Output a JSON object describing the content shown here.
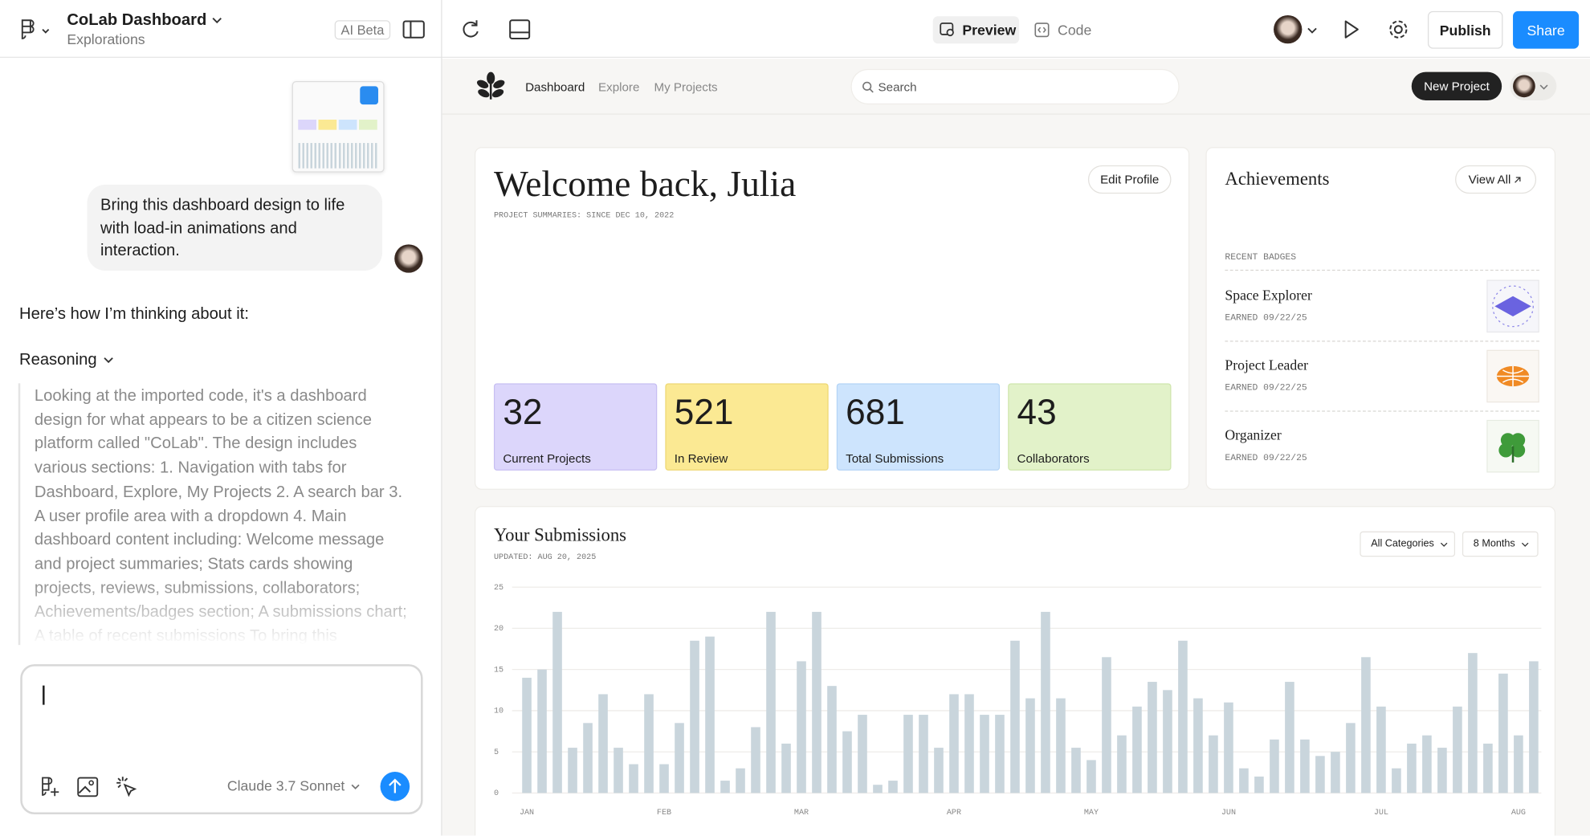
{
  "top_bar": {
    "project_title": "CoLab Dashboard",
    "project_subtitle": "Explorations",
    "ai_badge": "AI Beta",
    "preview_tab": "Preview",
    "code_tab": "Code",
    "publish": "Publish",
    "share": "Share"
  },
  "chat": {
    "user_message": "Bring this dashboard design to life with load-in animations and interaction.",
    "assistant_intro": "Here’s how I’m thinking about it:",
    "reasoning_label": "Reasoning",
    "reasoning_text": "Looking at the imported code, it's a dashboard design for what appears to be a citizen science platform called \"CoLab\". The design includes various sections: 1. Navigation with tabs for Dashboard, Explore, My Projects 2. A search bar 3. A user profile area with a dropdown 4. Main dashboard content including: Welcome message and project summaries; Stats cards showing projects, reviews, submissions, collaborators; Achievements/badges section; A submissions chart; A table of recent submissions To bring this",
    "model": "Claude 3.7 Sonnet"
  },
  "preview": {
    "nav": [
      "Dashboard",
      "Explore",
      "My Projects"
    ],
    "search_placeholder": "Search",
    "new_project": "New Project",
    "welcome": {
      "title": "Welcome back, Julia",
      "subtitle": "PROJECT SUMMARIES: SINCE DEC 10, 2022",
      "edit_profile": "Edit Profile",
      "stats": [
        {
          "value": 32,
          "label": "Current Projects"
        },
        {
          "value": 521,
          "label": "In Review"
        },
        {
          "value": 681,
          "label": "Total Submissions"
        },
        {
          "value": 43,
          "label": "Collaborators"
        }
      ]
    },
    "achievements": {
      "title": "Achievements",
      "view_all": "View All",
      "section": "RECENT BADGES",
      "badges": [
        {
          "name": "Space Explorer",
          "earned": "EARNED 09/22/25"
        },
        {
          "name": "Project Leader",
          "earned": "EARNED 09/22/25"
        },
        {
          "name": "Organizer",
          "earned": "EARNED 09/22/25"
        }
      ]
    },
    "filters": [
      "All Categories",
      "8 Months"
    ]
  },
  "chart_data": {
    "type": "bar",
    "title": "Your Submissions",
    "subtitle": "UPDATED: AUG 20, 2025",
    "color": "#c9d5dc",
    "grid": true,
    "ylim": [
      0,
      25
    ],
    "yticks": [
      0,
      5,
      10,
      15,
      20,
      25
    ],
    "categories": [
      "JAN",
      null,
      null,
      null,
      null,
      null,
      null,
      null,
      null,
      "FEB",
      null,
      null,
      null,
      null,
      null,
      null,
      null,
      null,
      "MAR",
      null,
      null,
      null,
      null,
      null,
      null,
      null,
      null,
      null,
      "APR",
      null,
      null,
      null,
      null,
      null,
      null,
      null,
      null,
      "MAY",
      null,
      null,
      null,
      null,
      null,
      null,
      null,
      null,
      "JUN",
      null,
      null,
      null,
      null,
      null,
      null,
      null,
      null,
      null,
      "JUL",
      null,
      null,
      null,
      null,
      null,
      null,
      null,
      null,
      "AUG",
      null
    ],
    "values": [
      14,
      15,
      22,
      5.5,
      8.5,
      12,
      5.5,
      3.5,
      12,
      3.5,
      8.5,
      18.5,
      19,
      1.5,
      3,
      8,
      22,
      6,
      16,
      22,
      13,
      7.5,
      9.5,
      1,
      1.5,
      9.5,
      9.5,
      5.5,
      12,
      12,
      9.5,
      9.5,
      18.5,
      11.5,
      22,
      11.5,
      5.5,
      4,
      16.5,
      7,
      10.5,
      13.5,
      12.5,
      18.5,
      11.5,
      7,
      11,
      3,
      2,
      6.5,
      13.5,
      6.5,
      4.5,
      5,
      8.5,
      16.5,
      10.5,
      3,
      6,
      7,
      5.5,
      10.5,
      17,
      6,
      14.5,
      7,
      16
    ]
  }
}
